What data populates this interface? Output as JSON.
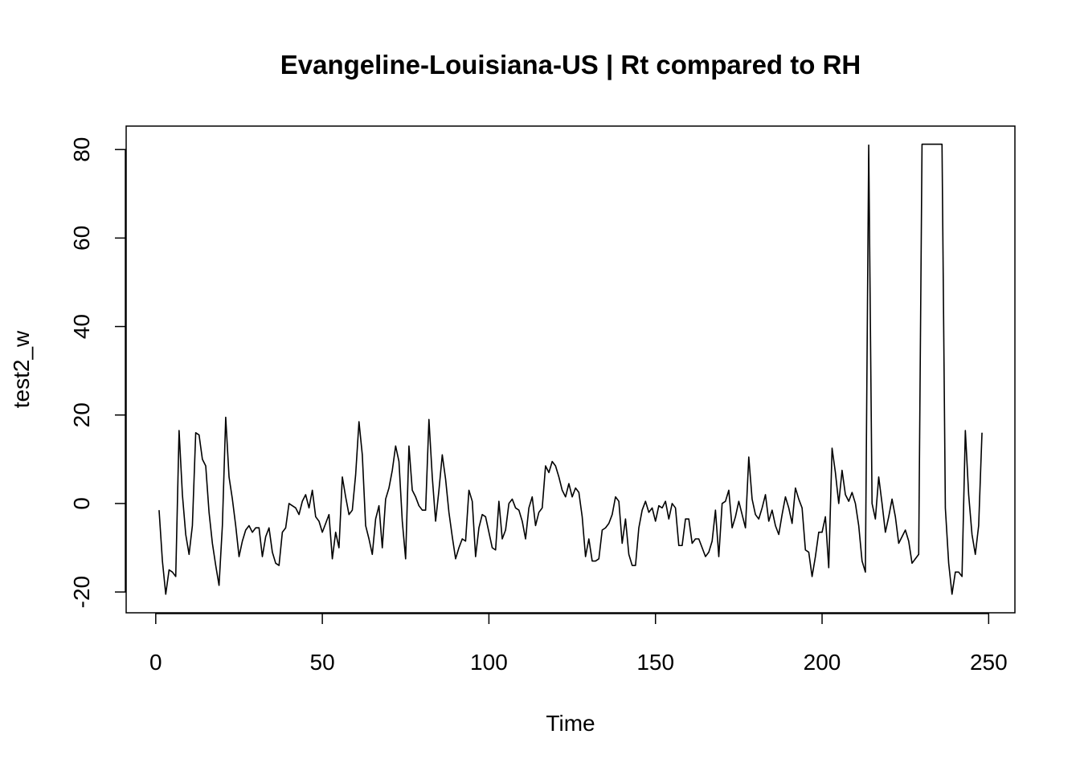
{
  "chart_data": {
    "type": "line",
    "title": "Evangeline-Louisiana-US | Rt compared to RH",
    "x_label": "Time",
    "y_label": "test2_w",
    "xlim": [
      -8.88,
      257.88
    ],
    "ylim": [
      -24.7,
      85.3
    ],
    "xticks": [
      0,
      50,
      100,
      150,
      200,
      250
    ],
    "yticks": [
      -20,
      0,
      20,
      40,
      60,
      80
    ],
    "color": "#000000",
    "x": [
      1,
      2,
      3,
      4,
      5,
      6,
      7,
      8,
      9,
      10,
      11,
      12,
      13,
      14,
      15,
      16,
      17,
      18,
      19,
      20,
      21,
      22,
      23,
      24,
      25,
      26,
      27,
      28,
      29,
      30,
      31,
      32,
      33,
      34,
      35,
      36,
      37,
      38,
      39,
      40,
      41,
      42,
      43,
      44,
      45,
      46,
      47,
      48,
      49,
      50,
      51,
      52,
      53,
      54,
      55,
      56,
      57,
      58,
      59,
      60,
      61,
      62,
      63,
      64,
      65,
      66,
      67,
      68,
      69,
      70,
      71,
      72,
      73,
      74,
      75,
      76,
      77,
      78,
      79,
      80,
      81,
      82,
      83,
      84,
      85,
      86,
      87,
      88,
      89,
      90,
      91,
      92,
      93,
      94,
      95,
      96,
      97,
      98,
      99,
      100,
      101,
      102,
      103,
      104,
      105,
      106,
      107,
      108,
      109,
      110,
      111,
      112,
      113,
      114,
      115,
      116,
      117,
      118,
      119,
      120,
      121,
      122,
      123,
      124,
      125,
      126,
      127,
      128,
      129,
      130,
      131,
      132,
      133,
      134,
      135,
      136,
      137,
      138,
      139,
      140,
      141,
      142,
      143,
      144,
      145,
      146,
      147,
      148,
      149,
      150,
      151,
      152,
      153,
      154,
      155,
      156,
      157,
      158,
      159,
      160,
      161,
      162,
      163,
      164,
      165,
      166,
      167,
      168,
      169,
      170,
      171,
      172,
      173,
      174,
      175,
      176,
      177,
      178,
      179,
      180,
      181,
      182,
      183,
      184,
      185,
      186,
      187,
      188,
      189,
      190,
      191,
      192,
      193,
      194,
      195,
      196,
      197,
      198,
      199,
      200,
      201,
      202,
      203,
      204,
      205,
      206,
      207,
      208,
      209,
      210,
      211,
      212,
      213,
      214,
      215,
      216,
      217,
      218,
      219,
      220,
      221,
      222,
      223,
      224,
      225,
      226,
      227,
      228,
      229,
      230,
      231,
      232,
      233,
      234,
      235,
      236,
      237,
      238,
      239,
      240,
      241,
      242,
      243,
      244,
      245,
      246,
      247,
      248
    ],
    "values": [
      -1.5,
      -13,
      -20.5,
      -15,
      -15.5,
      -16.5,
      16.5,
      2,
      -7,
      -11.5,
      -5,
      16,
      15.5,
      10,
      8.5,
      -2,
      -9,
      -14,
      -18.5,
      -5,
      19.5,
      6,
      1,
      -5,
      -12,
      -8.5,
      -6,
      -5,
      -6.5,
      -5.5,
      -5.5,
      -12,
      -7.5,
      -5.5,
      -11,
      -13.5,
      -14,
      -6.5,
      -5.5,
      0,
      -0.5,
      -1,
      -2.5,
      0.5,
      2,
      -1,
      3,
      -3,
      -4,
      -6.5,
      -4.5,
      -2.5,
      -12.5,
      -6.5,
      -10,
      6,
      1.5,
      -2.5,
      -1.5,
      6.5,
      18.5,
      11,
      -5,
      -8,
      -11.5,
      -3.5,
      -0.5,
      -10,
      1,
      3.5,
      7.5,
      13,
      9.5,
      -4,
      -12.5,
      13,
      3,
      1.5,
      -0.5,
      -1.5,
      -1.5,
      19,
      6,
      -4,
      3,
      11,
      5.5,
      -2,
      -7.5,
      -12.5,
      -10,
      -8,
      -8.5,
      3,
      0.5,
      -12,
      -5.5,
      -2.5,
      -3,
      -6.5,
      -10,
      -10.5,
      0.5,
      -8,
      -6,
      0,
      1,
      -1,
      -1.5,
      -4,
      -8,
      -1,
      1.5,
      -5,
      -2,
      -1,
      8.5,
      7,
      9.5,
      8.5,
      6,
      3,
      1.5,
      4.5,
      1.5,
      3.5,
      2.5,
      -3,
      -12,
      -8,
      -13,
      -13,
      -12.5,
      -6,
      -5.5,
      -4.5,
      -2.5,
      1.5,
      0.5,
      -9,
      -3.5,
      -11.5,
      -14,
      -14,
      -5.5,
      -1.5,
      0.5,
      -2,
      -1,
      -4,
      -0.5,
      -1,
      0.5,
      -3.5,
      0,
      -1,
      -9.5,
      -9.5,
      -3.5,
      -3.5,
      -9,
      -8,
      -8,
      -10,
      -12,
      -11,
      -8.5,
      -1.5,
      -12,
      0,
      0.5,
      3,
      -5.5,
      -3,
      0.5,
      -2.5,
      -5.5,
      10.5,
      1,
      -2.5,
      -3.5,
      -1,
      2,
      -4,
      -1.5,
      -5,
      -7,
      -2.5,
      1.5,
      -1,
      -4.5,
      3.5,
      1,
      -1,
      -10.5,
      -11,
      -16.5,
      -12,
      -6.5,
      -6.5,
      -3,
      -14.5,
      12.5,
      7,
      0,
      7.5,
      2,
      0.5,
      2.5,
      0,
      -5,
      -13,
      -15.5,
      81,
      0,
      -3.5,
      6,
      0,
      -6.5,
      -3,
      1,
      -3,
      -9,
      -7.5,
      -6,
      -8.5,
      -13.5,
      -12.5,
      -11.5,
      81.2,
      81.2,
      81.2,
      81.2,
      81.2,
      81.2,
      81.2,
      -1,
      -13.5,
      -20.5,
      -15.5,
      -15.5,
      -16.5,
      16.5,
      2,
      -7,
      -11.5,
      -5,
      16
    ]
  }
}
